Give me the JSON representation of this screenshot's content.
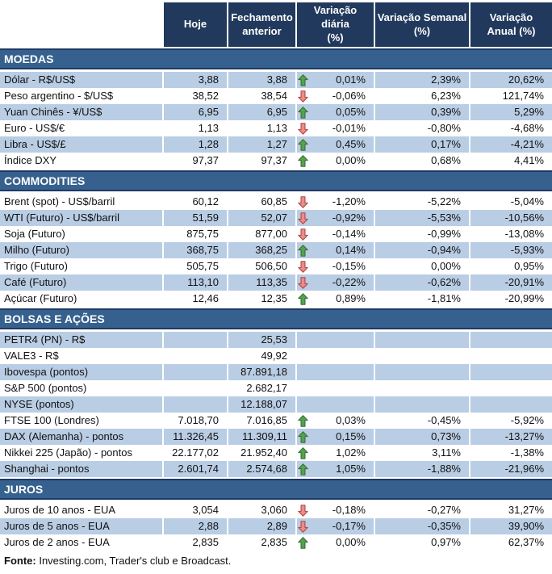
{
  "colors": {
    "header_bg": "#21395C",
    "band_bg": "#36618E",
    "band_border": "#1F3864",
    "stripe": "#B9CDE4",
    "up_arrow_fill": "#57A14F",
    "up_arrow_stroke": "#376F37",
    "down_arrow_fill": "#EC8B88",
    "down_arrow_stroke": "#AE4644"
  },
  "header": {
    "columns": [
      "Hoje",
      "Fechamento\nanterior",
      "Variação diária\n(%)",
      "Variação Semanal\n(%)",
      "Variação\nAnual (%)"
    ]
  },
  "sections": [
    {
      "id": "moedas",
      "title": "MOEDAS",
      "stripe_first": true,
      "rows": [
        {
          "label": "Dólar - R$/US$",
          "today": "3,88",
          "previous": "3,88",
          "trend": "up",
          "daily": "0,01%",
          "weekly": "2,39%",
          "annual": "20,62%"
        },
        {
          "label": "Peso argentino - $/US$",
          "today": "38,52",
          "previous": "38,54",
          "trend": "down",
          "daily": "-0,06%",
          "weekly": "6,23%",
          "annual": "121,74%"
        },
        {
          "label": "Yuan Chinês - ¥/US$",
          "today": "6,95",
          "previous": "6,95",
          "trend": "up",
          "daily": "0,05%",
          "weekly": "0,39%",
          "annual": "5,29%"
        },
        {
          "label": "Euro - US$/€",
          "today": "1,13",
          "previous": "1,13",
          "trend": "down",
          "daily": "-0,01%",
          "weekly": "-0,80%",
          "annual": "-4,68%"
        },
        {
          "label": "Libra - US$/£",
          "today": "1,28",
          "previous": "1,27",
          "trend": "up",
          "daily": "0,45%",
          "weekly": "0,17%",
          "annual": "-4,21%"
        },
        {
          "label": "Índice DXY",
          "today": "97,37",
          "previous": "97,37",
          "trend": "up",
          "daily": "0,00%",
          "weekly": "0,68%",
          "annual": "4,41%"
        }
      ]
    },
    {
      "id": "commodities",
      "title": "COMMODITIES",
      "stripe_first": false,
      "rows": [
        {
          "label": "Brent (spot) - US$/barril",
          "today": "60,12",
          "previous": "60,85",
          "trend": "down",
          "daily": "-1,20%",
          "weekly": "-5,22%",
          "annual": "-5,04%"
        },
        {
          "label": "WTI (Futuro) - US$/barril",
          "today": "51,59",
          "previous": "52,07",
          "trend": "down",
          "daily": "-0,92%",
          "weekly": "-5,53%",
          "annual": "-10,56%"
        },
        {
          "label": "Soja (Futuro)",
          "today": "875,75",
          "previous": "877,00",
          "trend": "down",
          "daily": "-0,14%",
          "weekly": "-0,99%",
          "annual": "-13,08%"
        },
        {
          "label": "Milho (Futuro)",
          "today": "368,75",
          "previous": "368,25",
          "trend": "up",
          "daily": "0,14%",
          "weekly": "-0,94%",
          "annual": "-5,93%"
        },
        {
          "label": "Trigo (Futuro)",
          "today": "505,75",
          "previous": "506,50",
          "trend": "down",
          "daily": "-0,15%",
          "weekly": "0,00%",
          "annual": "0,95%"
        },
        {
          "label": "Café (Futuro)",
          "today": "113,10",
          "previous": "113,35",
          "trend": "down",
          "daily": "-0,22%",
          "weekly": "-0,62%",
          "annual": "-20,91%"
        },
        {
          "label": "Açúcar (Futuro)",
          "today": "12,46",
          "previous": "12,35",
          "trend": "up",
          "daily": "0,89%",
          "weekly": "-1,81%",
          "annual": "-20,99%"
        }
      ]
    },
    {
      "id": "bolsas-e-acoes",
      "title": "BOLSAS E AÇÕES",
      "stripe_first": true,
      "rows": [
        {
          "label": "PETR4 (PN) - R$",
          "today": "",
          "previous": "25,53",
          "trend": null,
          "daily": "",
          "weekly": "",
          "annual": ""
        },
        {
          "label": "VALE3 - R$",
          "today": "",
          "previous": "49,92",
          "trend": null,
          "daily": "",
          "weekly": "",
          "annual": ""
        },
        {
          "label": "Ibovespa (pontos)",
          "today": "",
          "previous": "87.891,18",
          "trend": null,
          "daily": "",
          "weekly": "",
          "annual": ""
        },
        {
          "label": "S&P 500 (pontos)",
          "today": "",
          "previous": "2.682,17",
          "trend": null,
          "daily": "",
          "weekly": "",
          "annual": ""
        },
        {
          "label": "NYSE (pontos)",
          "today": "",
          "previous": "12.188,07",
          "trend": null,
          "daily": "",
          "weekly": "",
          "annual": ""
        },
        {
          "label": "FTSE 100 (Londres)",
          "today": "7.018,70",
          "previous": "7.016,85",
          "trend": "up",
          "daily": "0,03%",
          "weekly": "-0,45%",
          "annual": "-5,92%"
        },
        {
          "label": "DAX (Alemanha) - pontos",
          "today": "11.326,45",
          "previous": "11.309,11",
          "trend": "up",
          "daily": "0,15%",
          "weekly": "0,73%",
          "annual": "-13,27%"
        },
        {
          "label": "Nikkei 225 (Japão) - pontos",
          "today": "22.177,02",
          "previous": "21.952,40",
          "trend": "up",
          "daily": "1,02%",
          "weekly": "3,11%",
          "annual": "-1,38%"
        },
        {
          "label": "Shanghai - pontos",
          "today": "2.601,74",
          "previous": "2.574,68",
          "trend": "up",
          "daily": "1,05%",
          "weekly": "-1,88%",
          "annual": "-21,96%"
        }
      ]
    },
    {
      "id": "juros",
      "title": "JUROS",
      "stripe_first": false,
      "rows": [
        {
          "label": "Juros de 10 anos - EUA",
          "today": "3,054",
          "previous": "3,060",
          "trend": "down",
          "daily": "-0,18%",
          "weekly": "-0,27%",
          "annual": "31,27%"
        },
        {
          "label": "Juros de 5 anos - EUA",
          "today": "2,88",
          "previous": "2,89",
          "trend": "down",
          "daily": "-0,17%",
          "weekly": "-0,35%",
          "annual": "39,90%"
        },
        {
          "label": "Juros de 2 anos - EUA",
          "today": "2,835",
          "previous": "2,835",
          "trend": "up",
          "daily": "0,00%",
          "weekly": "0,97%",
          "annual": "62,37%"
        }
      ]
    }
  ],
  "footer": {
    "label": "Fonte:",
    "text": " Investing.com, Trader's club e Broadcast."
  }
}
